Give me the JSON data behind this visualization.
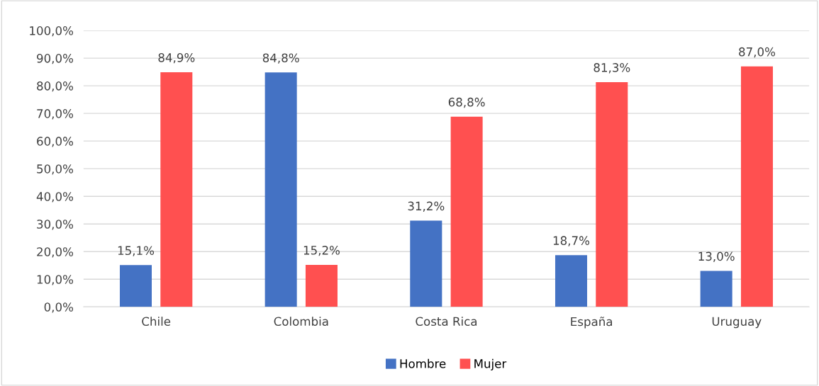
{
  "chart_data": {
    "type": "bar",
    "categories": [
      "Chile",
      "Colombia",
      "Costa Rica",
      "España",
      "Uruguay"
    ],
    "series": [
      {
        "name": "Hombre",
        "color": "#4472c4",
        "values": [
          15.1,
          84.8,
          31.2,
          18.7,
          13.0
        ],
        "value_labels": [
          "15,1%",
          "84,8%",
          "31,2%",
          "18,7%",
          "13,0%"
        ]
      },
      {
        "name": "Mujer",
        "color": "#ff5050",
        "values": [
          84.9,
          15.2,
          68.8,
          81.3,
          87.0
        ],
        "value_labels": [
          "84,9%",
          "15,2%",
          "68,8%",
          "81,3%",
          "87,0%"
        ]
      }
    ],
    "ylim": [
      0,
      100
    ],
    "yticks": [
      {
        "value": 0,
        "label": "0,0%"
      },
      {
        "value": 10,
        "label": "10,0%"
      },
      {
        "value": 20,
        "label": "20,0%"
      },
      {
        "value": 30,
        "label": "30,0%"
      },
      {
        "value": 40,
        "label": "40,0%"
      },
      {
        "value": 50,
        "label": "50,0%"
      },
      {
        "value": 60,
        "label": "60,0%"
      },
      {
        "value": 70,
        "label": "70,0%"
      },
      {
        "value": 80,
        "label": "80,0%"
      },
      {
        "value": 90,
        "label": "90,0%"
      },
      {
        "value": 100,
        "label": "100,0%"
      }
    ],
    "grid": "y",
    "legend": "bottom"
  }
}
